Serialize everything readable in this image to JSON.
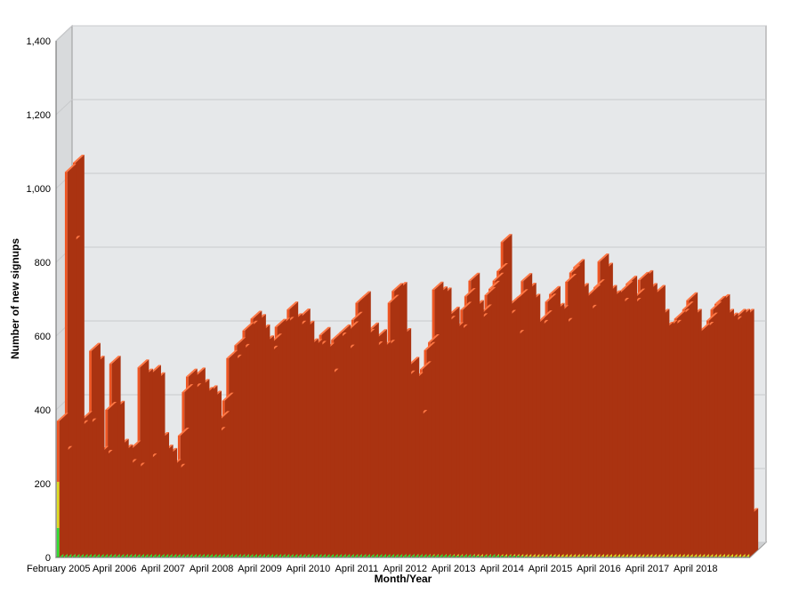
{
  "chart_data": {
    "type": "bar",
    "stacked": true,
    "three_d": true,
    "title": "",
    "xlabel": "Month/Year",
    "ylabel": "Number of new signups",
    "ylim": [
      0,
      1400
    ],
    "yticks": [
      0,
      200,
      400,
      600,
      800,
      1000,
      1200,
      1400
    ],
    "ytick_labels": [
      "0",
      "200",
      "400",
      "600",
      "800",
      "1,000",
      "1,200",
      "1,400"
    ],
    "grid": true,
    "legend": "none",
    "colors": {
      "green": "#33dd33",
      "yellow": "#dddd22",
      "orange": "#ee5522",
      "top_face": "#ff7744",
      "side_face": "#aa3311",
      "wall": "#e6e8ea",
      "grid": "#c8cacc"
    },
    "xtick_labels": [
      {
        "label": "February 2005",
        "index": 0
      },
      {
        "label": "April 2006",
        "index": 14
      },
      {
        "label": "April 2007",
        "index": 26
      },
      {
        "label": "April 2008",
        "index": 38
      },
      {
        "label": "April 2009",
        "index": 50
      },
      {
        "label": "April 2010",
        "index": 62
      },
      {
        "label": "April 2011",
        "index": 74
      },
      {
        "label": "April 2012",
        "index": 86
      },
      {
        "label": "April 2013",
        "index": 98
      },
      {
        "label": "April 2014",
        "index": 110
      },
      {
        "label": "April 2015",
        "index": 122
      },
      {
        "label": "April 2016",
        "index": 134
      },
      {
        "label": "April 2017",
        "index": 146
      },
      {
        "label": "April 2018",
        "index": 158
      }
    ],
    "series": [
      {
        "values": [
          80,
          55,
          70,
          75,
          90,
          60,
          45,
          70,
          40,
          25,
          30,
          25,
          30,
          25,
          28,
          20,
          25,
          20,
          25,
          30,
          35,
          40,
          20,
          20,
          15,
          18,
          14,
          15,
          10,
          12,
          20,
          18,
          15,
          20,
          18,
          22,
          25,
          20,
          35,
          22,
          20,
          25,
          20,
          18,
          25,
          22,
          30,
          35,
          32,
          28,
          30,
          25,
          22,
          20,
          25,
          18,
          20,
          22,
          25,
          20,
          18,
          20,
          22,
          20,
          15,
          18,
          20,
          15,
          12,
          18,
          20,
          15,
          18,
          22,
          20,
          25,
          18,
          15,
          14,
          12,
          15,
          18,
          20,
          22,
          25,
          20,
          15,
          12,
          10,
          8,
          10,
          12,
          8,
          6,
          8,
          10,
          8,
          8,
          6,
          5,
          6,
          8,
          10,
          6,
          5,
          4,
          6,
          8,
          10,
          6,
          5,
          4,
          6,
          5,
          5,
          4,
          3,
          3,
          2,
          2,
          3,
          3,
          4,
          3,
          2,
          2,
          2,
          2,
          2,
          2,
          3,
          3,
          3,
          2,
          2,
          2,
          2,
          2,
          2,
          2,
          2,
          2,
          2,
          2,
          2,
          2,
          2,
          2,
          2,
          2,
          2,
          2,
          2,
          2,
          2,
          2,
          2,
          2,
          2,
          2,
          2,
          2,
          2,
          2,
          2,
          2,
          2,
          2,
          2,
          2,
          2,
          2
        ]
      },
      {
        "values": [
          125,
          150,
          200,
          195,
          240,
          170,
          100,
          230,
          150,
          100,
          100,
          95,
          140,
          120,
          145,
          100,
          90,
          85,
          80,
          70,
          95,
          100,
          80,
          100,
          95,
          70,
          80,
          90,
          75,
          55,
          90,
          100,
          105,
          130,
          125,
          120,
          135,
          125,
          155,
          110,
          105,
          110,
          120,
          110,
          130,
          135,
          125,
          135,
          155,
          140,
          140,
          135,
          140,
          135,
          140,
          130,
          130,
          150,
          155,
          140,
          145,
          140,
          130,
          120,
          110,
          105,
          120,
          115,
          108,
          100,
          90,
          100,
          110,
          112,
          120,
          125,
          100,
          80,
          80,
          85,
          80,
          90,
          100,
          110,
          100,
          100,
          90,
          80,
          70,
          70,
          80,
          90,
          95,
          90,
          85,
          90,
          85,
          90,
          80,
          85,
          85,
          80,
          90,
          80,
          75,
          80,
          85,
          80,
          90,
          100,
          120,
          95,
          80,
          70,
          80,
          85,
          80,
          70,
          75,
          80,
          85,
          90,
          80,
          75,
          70,
          65,
          75,
          80,
          85,
          80,
          75,
          70,
          75,
          80,
          90,
          85,
          75,
          70,
          65,
          60,
          65,
          60,
          60,
          65,
          70,
          65,
          60,
          55,
          55,
          50,
          55,
          60,
          60,
          55,
          50,
          50,
          55,
          50,
          50,
          50,
          55,
          50,
          50,
          45,
          50,
          50,
          50,
          50,
          50,
          50,
          50,
          55
        ]
      },
      {
        "values": [
          165,
          75,
          775,
          580,
          740,
          120,
          230,
          55,
          370,
          400,
          150,
          150,
          230,
          380,
          230,
          180,
          170,
          140,
          190,
          135,
          385,
          350,
          160,
          380,
          370,
          230,
          190,
          170,
          160,
          165,
          220,
          330,
          370,
          300,
          350,
          320,
          280,
          300,
          240,
          200,
          250,
          290,
          400,
          400,
          420,
          400,
          460,
          450,
          460,
          470,
          440,
          420,
          390,
          430,
          460,
          480,
          480,
          500,
          460,
          460,
          490,
          460,
          420,
          430,
          440,
          480,
          420,
          360,
          470,
          470,
          500,
          440,
          490,
          510,
          550,
          550,
          480,
          520,
          470,
          500,
          470,
          460,
          570,
          590,
          600,
          480,
          380,
          430,
          400,
          300,
          420,
          460,
          480,
          630,
          620,
          610,
          540,
          560,
          530,
          520,
          580,
          620,
          650,
          590,
          560,
          580,
          620,
          640,
          650,
          670,
          730,
          550,
          600,
          520,
          620,
          660,
          640,
          620,
          550,
          540,
          560,
          600,
          630,
          590,
          590,
          560,
          670,
          690,
          700,
          640,
          620,
          590,
          640,
          650,
          710,
          690,
          640,
          630,
          640,
          620,
          660,
          680,
          620,
          640,
          680,
          690,
          660,
          650,
          660,
          600,
          560,
          560,
          560,
          590,
          600,
          620,
          640,
          600,
          550,
          560,
          560,
          590,
          620,
          640,
          640,
          600,
          590,
          580,
          600,
          600,
          600,
          55
        ]
      }
    ]
  }
}
